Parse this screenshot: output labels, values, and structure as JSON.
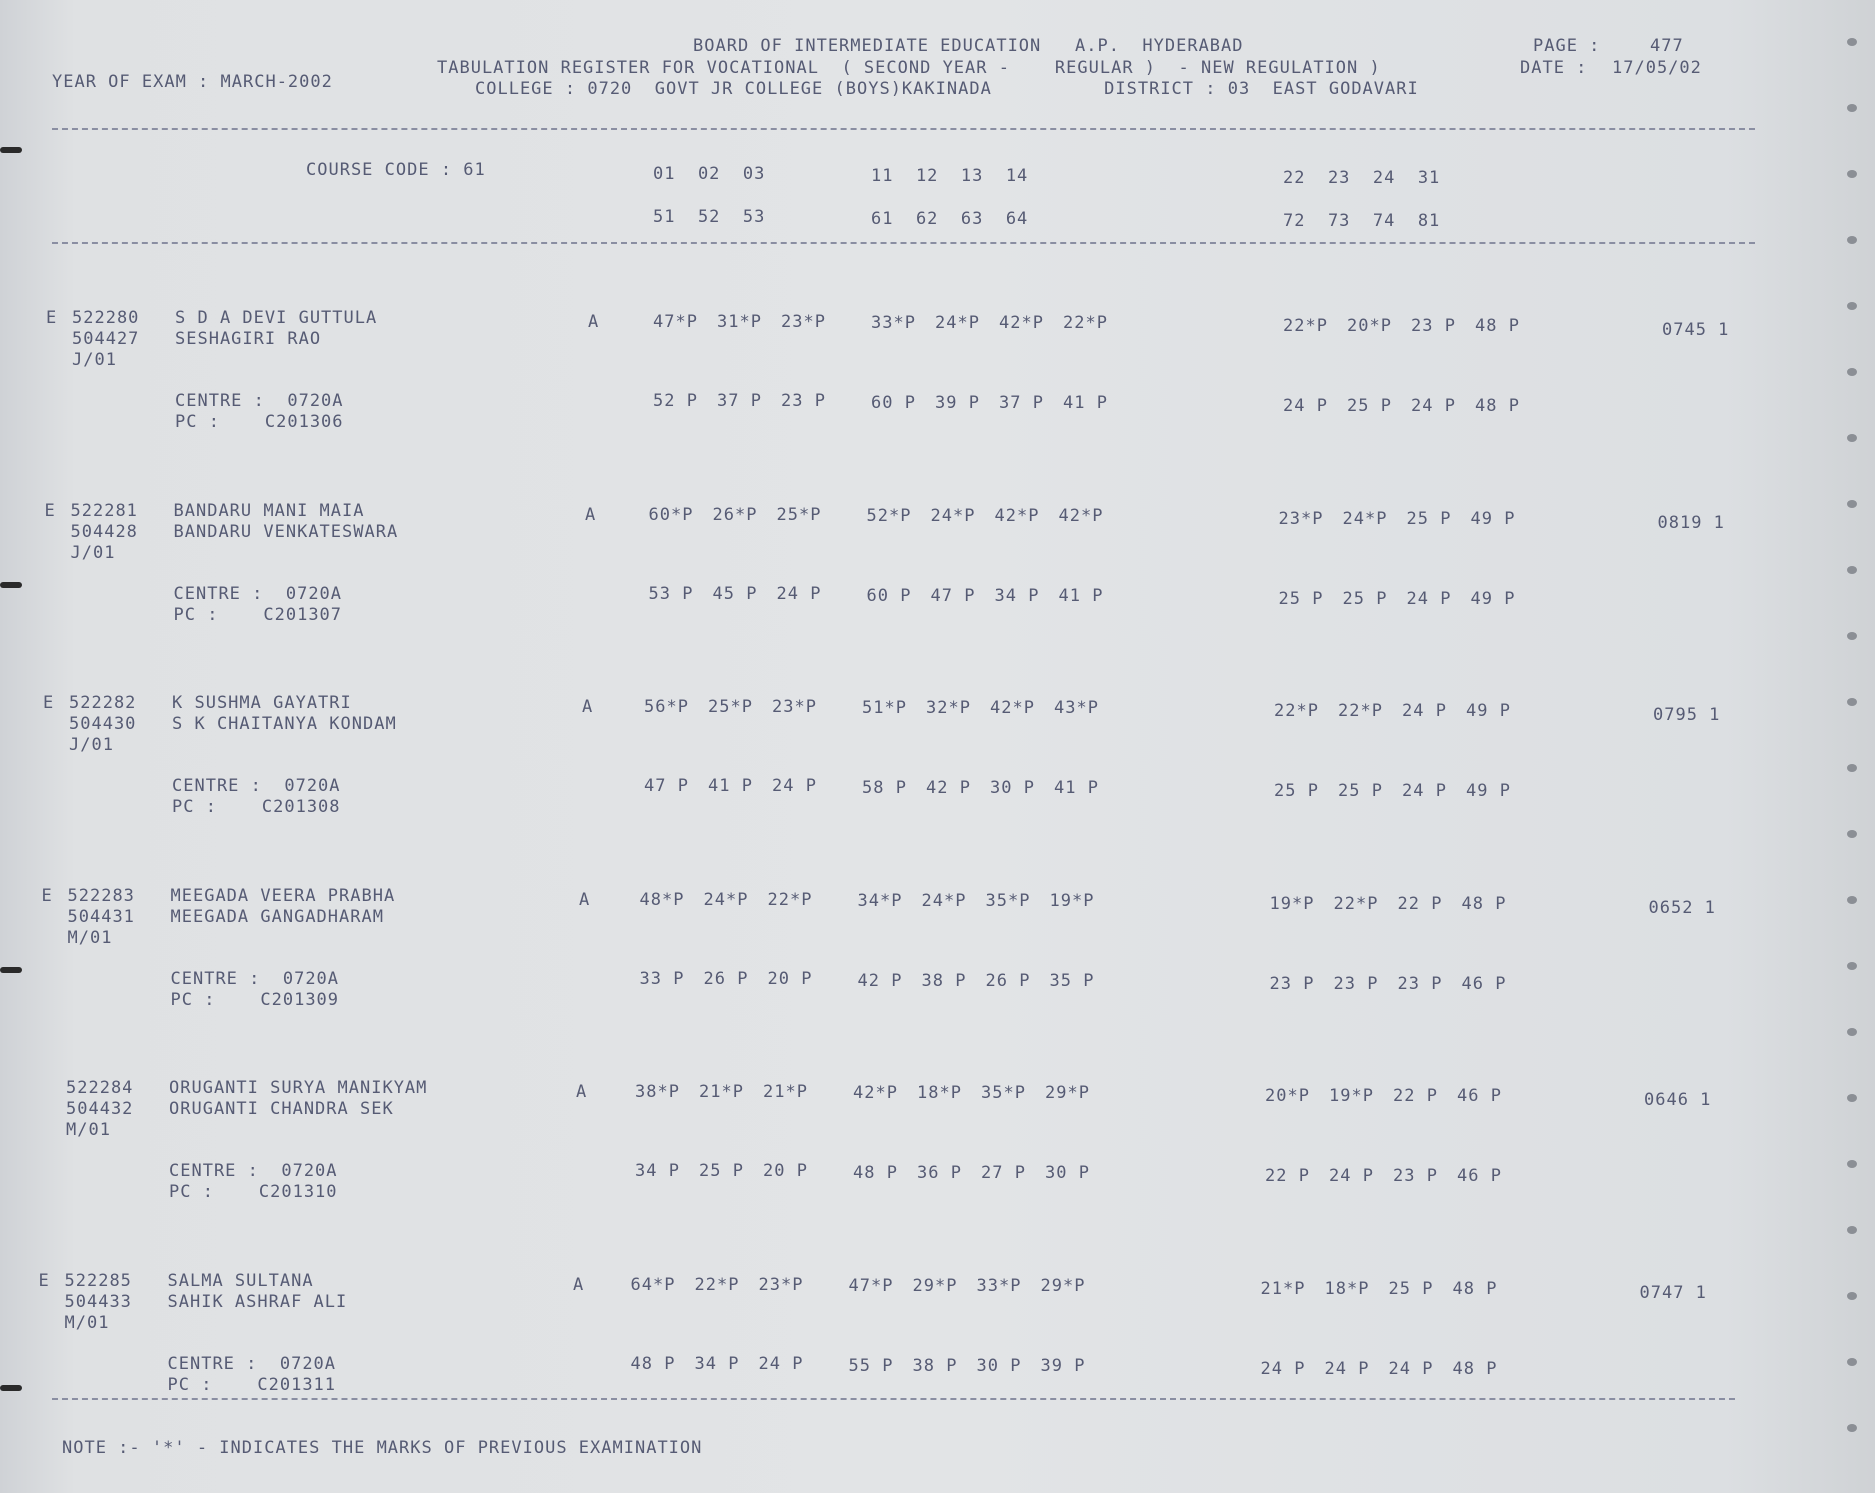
{
  "header": {
    "year_of_exam": "YEAR OF EXAM : MARCH-2002",
    "line1": "BOARD OF INTERMEDIATE EDUCATION   A.P.  HYDERABAD",
    "line2": "TABULATION REGISTER FOR VOCATIONAL  ( SECOND YEAR -    REGULAR )  - NEW REGULATION )",
    "line3": "COLLEGE : 0720  GOVT JR COLLEGE (BOYS)KAKINADA          DISTRICT : 03  EAST GODAVARI",
    "page_label": "PAGE :",
    "page_number": "477",
    "date_label": "DATE :",
    "date": "17/05/02"
  },
  "columns": {
    "course_code": "COURSE CODE : 61",
    "row1": {
      "g1": "01  02  03",
      "g2": "11  12  13  14",
      "g3": "22  23  24  31"
    },
    "row2": {
      "g1": "51  52  53",
      "g2": "61  62  63  64",
      "g3": "72  73  74  81"
    }
  },
  "students": [
    {
      "flag": "E",
      "hall_ticket": "522280",
      "roll": "504427",
      "group": "J/01",
      "name": "S D A DEVI GUTTULA",
      "parent": "SESHAGIRI RAO",
      "grade": "A",
      "marks1": [
        "47*P",
        "31*P",
        "23*P"
      ],
      "marks2": [
        "33*P",
        "24*P",
        "42*P",
        "22*P"
      ],
      "marks3": [
        "22*P",
        "20*P",
        "23 P",
        "48 P"
      ],
      "centre_label": "CENTRE :  0720A",
      "pc_label": "PC :    C201306",
      "marks4": [
        "52 P",
        "37 P",
        "23 P"
      ],
      "marks5": [
        "60 P",
        "39 P",
        "37 P",
        "41 P"
      ],
      "marks6": [
        "24 P",
        "25 P",
        "24 P",
        "48 P"
      ],
      "total": "0745 1"
    },
    {
      "flag": "E",
      "hall_ticket": "522281",
      "roll": "504428",
      "group": "J/01",
      "name": "BANDARU MANI MAIA",
      "parent": "BANDARU VENKATESWARA",
      "grade": "A",
      "marks1": [
        "60*P",
        "26*P",
        "25*P"
      ],
      "marks2": [
        "52*P",
        "24*P",
        "42*P",
        "42*P"
      ],
      "marks3": [
        "23*P",
        "24*P",
        "25 P",
        "49 P"
      ],
      "centre_label": "CENTRE :  0720A",
      "pc_label": "PC :    C201307",
      "marks4": [
        "53 P",
        "45 P",
        "24 P"
      ],
      "marks5": [
        "60 P",
        "47 P",
        "34 P",
        "41 P"
      ],
      "marks6": [
        "25 P",
        "25 P",
        "24 P",
        "49 P"
      ],
      "total": "0819 1"
    },
    {
      "flag": "E",
      "hall_ticket": "522282",
      "roll": "504430",
      "group": "J/01",
      "name": "K SUSHMA GAYATRI",
      "parent": "S K CHAITANYA KONDAM",
      "grade": "A",
      "marks1": [
        "56*P",
        "25*P",
        "23*P"
      ],
      "marks2": [
        "51*P",
        "32*P",
        "42*P",
        "43*P"
      ],
      "marks3": [
        "22*P",
        "22*P",
        "24 P",
        "49 P"
      ],
      "centre_label": "CENTRE :  0720A",
      "pc_label": "PC :    C201308",
      "marks4": [
        "47 P",
        "41 P",
        "24 P"
      ],
      "marks5": [
        "58 P",
        "42 P",
        "30 P",
        "41 P"
      ],
      "marks6": [
        "25 P",
        "25 P",
        "24 P",
        "49 P"
      ],
      "total": "0795 1"
    },
    {
      "flag": "E",
      "hall_ticket": "522283",
      "roll": "504431",
      "group": "M/01",
      "name": "MEEGADA VEERA PRABHA",
      "parent": "MEEGADA GANGADHARAM",
      "grade": "A",
      "marks1": [
        "48*P",
        "24*P",
        "22*P"
      ],
      "marks2": [
        "34*P",
        "24*P",
        "35*P",
        "19*P"
      ],
      "marks3": [
        "19*P",
        "22*P",
        "22 P",
        "48 P"
      ],
      "centre_label": "CENTRE :  0720A",
      "pc_label": "PC :    C201309",
      "marks4": [
        "33 P",
        "26 P",
        "20 P"
      ],
      "marks5": [
        "42 P",
        "38 P",
        "26 P",
        "35 P"
      ],
      "marks6": [
        "23 P",
        "23 P",
        "23 P",
        "46 P"
      ],
      "total": "0652 1"
    },
    {
      "flag": "",
      "hall_ticket": "522284",
      "roll": "504432",
      "group": "M/01",
      "name": "ORUGANTI SURYA MANIKYAM",
      "parent": "ORUGANTI CHANDRA SEK",
      "grade": "A",
      "marks1": [
        "38*P",
        "21*P",
        "21*P"
      ],
      "marks2": [
        "42*P",
        "18*P",
        "35*P",
        "29*P"
      ],
      "marks3": [
        "20*P",
        "19*P",
        "22 P",
        "46 P"
      ],
      "centre_label": "CENTRE :  0720A",
      "pc_label": "PC :    C201310",
      "marks4": [
        "34 P",
        "25 P",
        "20 P"
      ],
      "marks5": [
        "48 P",
        "36 P",
        "27 P",
        "30 P"
      ],
      "marks6": [
        "22 P",
        "24 P",
        "23 P",
        "46 P"
      ],
      "total": "0646 1"
    },
    {
      "flag": "E",
      "hall_ticket": "522285",
      "roll": "504433",
      "group": "M/01",
      "name": "SALMA SULTANA",
      "parent": "SAHIK ASHRAF ALI",
      "grade": "A",
      "marks1": [
        "64*P",
        "22*P",
        "23*P"
      ],
      "marks2": [
        "47*P",
        "29*P",
        "33*P",
        "29*P"
      ],
      "marks3": [
        "21*P",
        "18*P",
        "25 P",
        "48 P"
      ],
      "centre_label": "CENTRE :  0720A",
      "pc_label": "PC :    C201311",
      "marks4": [
        "48 P",
        "34 P",
        "24 P"
      ],
      "marks5": [
        "55 P",
        "38 P",
        "30 P",
        "39 P"
      ],
      "marks6": [
        "24 P",
        "24 P",
        "24 P",
        "48 P"
      ],
      "total": "0747 1"
    }
  ],
  "note": "NOTE :- '*' - INDICATES THE MARKS OF PREVIOUS EXAMINATION"
}
